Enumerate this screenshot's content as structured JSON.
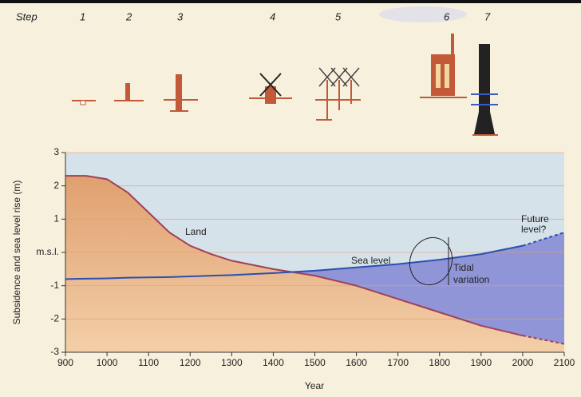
{
  "chart_data": {
    "type": "line",
    "step_title": "Step",
    "steps": [
      "1",
      "2",
      "3",
      "4",
      "5",
      "6",
      "7"
    ],
    "x_label": "Year",
    "y_label": "Subsidence and sea level rise (m)",
    "x": [
      900,
      950,
      1000,
      1050,
      1100,
      1150,
      1200,
      1250,
      1300,
      1400,
      1500,
      1600,
      1700,
      1800,
      1900,
      2000,
      2100
    ],
    "series": [
      {
        "name": "Land",
        "color": "#a0405a",
        "values": [
          2.3,
          2.3,
          2.2,
          1.8,
          1.2,
          0.6,
          0.2,
          -0.05,
          -0.25,
          -0.5,
          -0.7,
          -1.0,
          -1.4,
          -1.8,
          -2.2,
          -2.5,
          -2.75
        ]
      },
      {
        "name": "Sea level",
        "color": "#2c4fb0",
        "values": [
          -0.8,
          -0.79,
          -0.78,
          -0.76,
          -0.75,
          -0.74,
          -0.72,
          -0.7,
          -0.68,
          -0.62,
          -0.55,
          -0.45,
          -0.35,
          -0.22,
          -0.05,
          0.2,
          0.6
        ]
      }
    ],
    "projection_from": 2000,
    "annotations": {
      "tidal": "Tidal",
      "variation": "variation",
      "future": "Future",
      "level": "level?"
    },
    "xlim": [
      900,
      2100
    ],
    "xticks": [
      900,
      1000,
      1100,
      1200,
      1300,
      1400,
      1500,
      1600,
      1700,
      1800,
      1900,
      2000,
      2100
    ],
    "ylim": [
      -3,
      3
    ],
    "yticks": [
      -3,
      -2,
      -1,
      {
        "value": 0,
        "label": "m.s.l."
      },
      1,
      2,
      3
    ],
    "grid": true
  }
}
